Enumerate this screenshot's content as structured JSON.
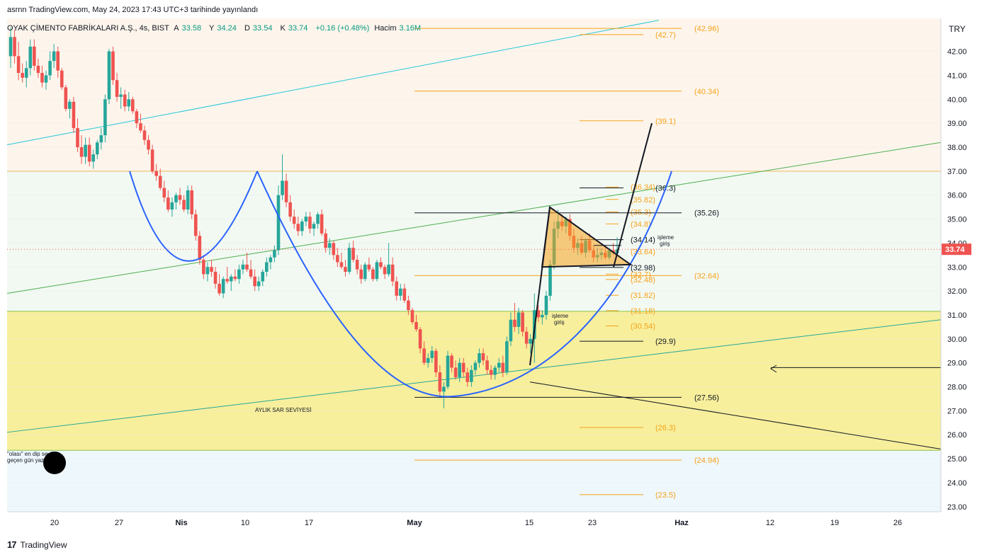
{
  "header": {
    "publish_line": "asrnn TradingView.com, May 24, 2023 17:43 UTC+3 tarihinde yayınlandı"
  },
  "legend": {
    "symbol": "OYAK ÇİMENTO FABRİKALARI A.Ş., 4s, BIST",
    "open_label": "A",
    "open": "33.58",
    "high_label": "Y",
    "high": "34.24",
    "low_label": "D",
    "low": "33.54",
    "close_label": "K",
    "close": "33.74",
    "change": "+0.16 (+0.48%)",
    "volume_label": "Hacim",
    "volume": "3.16M"
  },
  "footer": {
    "brand": "TradingView"
  },
  "colors": {
    "up": "#26a69a",
    "down": "#ef5350",
    "fib": "#f7a21b",
    "cup": "#2962ff",
    "zone_top": "#fdf5ec",
    "zone_mid": "#f2f9f2",
    "zone_yellow": "#f7ef9c",
    "zone_blue": "#eef7fb"
  },
  "chart_data": {
    "type": "candlestick",
    "currency": "TRY",
    "y_ticks": [
      "42.00",
      "41.00",
      "40.00",
      "39.00",
      "38.00",
      "37.00",
      "36.00",
      "35.00",
      "34.00",
      "33.00",
      "32.00",
      "31.00",
      "30.00",
      "29.00",
      "28.00",
      "27.00",
      "26.00",
      "25.00",
      "24.00",
      "23.00"
    ],
    "x_ticks": [
      "20",
      "27",
      "Nis",
      "10",
      "17",
      "May",
      "15",
      "23",
      "Haz",
      "12",
      "19",
      "26"
    ],
    "ylim": [
      22.7,
      43.3
    ],
    "last_price": "33.74",
    "ohlc": [
      [
        41.8,
        43.0,
        41.3,
        42.6
      ],
      [
        42.6,
        42.9,
        41.5,
        41.8
      ],
      [
        41.8,
        42.4,
        40.8,
        41.1
      ],
      [
        41.1,
        41.5,
        40.7,
        40.9
      ],
      [
        40.9,
        41.6,
        40.5,
        41.3
      ],
      [
        41.3,
        42.5,
        41.0,
        42.2
      ],
      [
        42.2,
        42.5,
        41.2,
        41.4
      ],
      [
        41.4,
        41.7,
        40.9,
        41.1
      ],
      [
        41.1,
        41.4,
        40.5,
        40.7
      ],
      [
        40.7,
        41.2,
        40.4,
        41.0
      ],
      [
        41.0,
        42.0,
        40.8,
        41.6
      ],
      [
        41.6,
        42.3,
        41.3,
        42.0
      ],
      [
        42.0,
        42.2,
        40.9,
        41.2
      ],
      [
        41.2,
        41.3,
        40.4,
        40.5
      ],
      [
        40.5,
        40.6,
        39.5,
        39.6
      ],
      [
        39.6,
        40.0,
        39.2,
        39.9
      ],
      [
        39.9,
        40.1,
        38.6,
        38.8
      ],
      [
        38.8,
        39.2,
        37.8,
        38.0
      ],
      [
        38.0,
        38.5,
        37.3,
        37.6
      ],
      [
        37.6,
        38.4,
        37.3,
        38.1
      ],
      [
        38.1,
        38.4,
        37.2,
        37.4
      ],
      [
        37.4,
        37.9,
        37.1,
        37.7
      ],
      [
        37.7,
        38.3,
        37.5,
        38.2
      ],
      [
        38.2,
        38.8,
        37.9,
        38.5
      ],
      [
        38.5,
        40.2,
        38.2,
        40.0
      ],
      [
        40.0,
        42.1,
        39.8,
        42.0
      ],
      [
        42.0,
        42.2,
        40.6,
        40.8
      ],
      [
        40.8,
        41.1,
        39.9,
        40.1
      ],
      [
        40.1,
        40.5,
        39.6,
        40.2
      ],
      [
        40.2,
        40.4,
        39.5,
        39.7
      ],
      [
        39.7,
        40.3,
        39.5,
        40.0
      ],
      [
        40.0,
        40.1,
        39.4,
        39.5
      ],
      [
        39.5,
        39.6,
        38.8,
        39.0
      ],
      [
        39.0,
        39.4,
        38.6,
        38.7
      ],
      [
        38.7,
        38.9,
        38.1,
        38.3
      ],
      [
        38.3,
        38.5,
        37.7,
        37.9
      ],
      [
        37.9,
        38.1,
        36.9,
        37.0
      ],
      [
        37.0,
        37.3,
        36.6,
        36.8
      ],
      [
        36.8,
        37.1,
        36.2,
        36.3
      ],
      [
        36.3,
        36.6,
        35.7,
        35.9
      ],
      [
        35.9,
        36.2,
        35.3,
        35.4
      ],
      [
        35.4,
        35.9,
        35.1,
        35.7
      ],
      [
        35.7,
        36.1,
        35.4,
        36.0
      ],
      [
        36.0,
        36.3,
        35.6,
        35.8
      ],
      [
        35.8,
        36.0,
        35.3,
        35.4
      ],
      [
        35.4,
        36.4,
        35.2,
        36.2
      ],
      [
        36.2,
        36.4,
        35.0,
        35.2
      ],
      [
        35.2,
        35.4,
        34.1,
        34.3
      ],
      [
        34.3,
        34.5,
        33.1,
        33.3
      ],
      [
        33.3,
        33.5,
        32.5,
        32.7
      ],
      [
        32.7,
        33.2,
        32.4,
        33.0
      ],
      [
        33.0,
        33.3,
        32.6,
        32.8
      ],
      [
        32.8,
        33.0,
        32.1,
        32.3
      ],
      [
        32.3,
        32.7,
        31.8,
        31.9
      ],
      [
        31.9,
        32.6,
        31.7,
        32.5
      ],
      [
        32.5,
        33.0,
        32.3,
        32.4
      ],
      [
        32.4,
        32.7,
        32.0,
        32.6
      ],
      [
        32.6,
        32.9,
        32.4,
        32.5
      ],
      [
        32.5,
        33.1,
        32.3,
        32.9
      ],
      [
        32.9,
        33.3,
        32.7,
        33.1
      ],
      [
        33.1,
        33.6,
        32.8,
        32.9
      ],
      [
        32.9,
        33.3,
        32.5,
        32.6
      ],
      [
        32.6,
        32.9,
        32.0,
        32.2
      ],
      [
        32.2,
        32.6,
        32.0,
        32.4
      ],
      [
        32.4,
        32.9,
        32.2,
        32.8
      ],
      [
        32.8,
        33.4,
        32.6,
        33.2
      ],
      [
        33.2,
        33.5,
        32.9,
        33.4
      ],
      [
        33.4,
        33.9,
        33.2,
        33.7
      ],
      [
        33.7,
        36.4,
        33.5,
        36.0
      ],
      [
        36.0,
        37.7,
        35.8,
        36.6
      ],
      [
        36.6,
        36.9,
        35.5,
        35.7
      ],
      [
        35.7,
        36.0,
        34.9,
        35.1
      ],
      [
        35.1,
        35.4,
        34.6,
        34.8
      ],
      [
        34.8,
        35.1,
        34.3,
        34.5
      ],
      [
        34.5,
        35.0,
        34.3,
        34.9
      ],
      [
        34.9,
        35.3,
        34.7,
        35.1
      ],
      [
        35.1,
        35.3,
        34.4,
        34.6
      ],
      [
        34.6,
        34.9,
        34.3,
        34.8
      ],
      [
        34.8,
        35.3,
        34.6,
        35.2
      ],
      [
        35.2,
        35.4,
        34.3,
        34.4
      ],
      [
        34.4,
        34.6,
        33.6,
        33.8
      ],
      [
        33.8,
        34.2,
        33.5,
        34.0
      ],
      [
        34.0,
        34.1,
        33.3,
        33.5
      ],
      [
        33.5,
        33.8,
        33.0,
        33.2
      ],
      [
        33.2,
        33.6,
        32.9,
        33.0
      ],
      [
        33.0,
        33.3,
        32.6,
        32.8
      ],
      [
        32.8,
        34.0,
        32.7,
        33.8
      ],
      [
        33.8,
        34.1,
        33.2,
        33.3
      ],
      [
        33.3,
        33.5,
        32.7,
        32.9
      ],
      [
        32.9,
        33.1,
        32.3,
        32.5
      ],
      [
        32.5,
        33.2,
        32.4,
        33.1
      ],
      [
        33.1,
        33.4,
        32.8,
        32.9
      ],
      [
        32.9,
        33.0,
        32.4,
        32.5
      ],
      [
        32.5,
        33.3,
        32.4,
        33.2
      ],
      [
        33.2,
        33.4,
        32.9,
        33.0
      ],
      [
        33.0,
        33.1,
        32.5,
        32.7
      ],
      [
        32.7,
        34.0,
        32.6,
        33.1
      ],
      [
        33.1,
        33.4,
        32.2,
        32.4
      ],
      [
        32.4,
        32.6,
        31.6,
        31.8
      ],
      [
        31.8,
        32.3,
        31.6,
        32.1
      ],
      [
        32.1,
        32.3,
        31.5,
        31.6
      ],
      [
        31.6,
        31.8,
        31.0,
        31.2
      ],
      [
        31.2,
        31.3,
        30.6,
        30.7
      ],
      [
        30.7,
        31.0,
        30.3,
        30.4
      ],
      [
        30.4,
        30.5,
        29.4,
        29.6
      ],
      [
        29.6,
        29.9,
        28.9,
        29.0
      ],
      [
        29.0,
        29.4,
        28.8,
        29.2
      ],
      [
        29.2,
        29.7,
        29.0,
        29.5
      ],
      [
        29.5,
        29.6,
        28.4,
        28.6
      ],
      [
        28.6,
        28.9,
        27.6,
        27.8
      ],
      [
        27.8,
        28.2,
        27.1,
        28.0
      ],
      [
        28.0,
        29.5,
        27.9,
        29.3
      ],
      [
        29.3,
        29.4,
        28.6,
        28.8
      ],
      [
        28.8,
        29.1,
        28.3,
        28.4
      ],
      [
        28.4,
        29.2,
        28.2,
        29.0
      ],
      [
        29.0,
        29.2,
        28.4,
        28.6
      ],
      [
        28.6,
        28.8,
        28.0,
        28.2
      ],
      [
        28.2,
        28.9,
        28.0,
        28.7
      ],
      [
        28.7,
        29.1,
        28.5,
        29.0
      ],
      [
        29.0,
        29.6,
        28.8,
        29.4
      ],
      [
        29.4,
        29.6,
        28.9,
        29.1
      ],
      [
        29.1,
        29.3,
        28.5,
        28.7
      ],
      [
        28.7,
        28.9,
        28.3,
        28.5
      ],
      [
        28.5,
        28.9,
        28.3,
        28.8
      ],
      [
        28.8,
        29.2,
        28.6,
        29.0
      ],
      [
        29.0,
        29.3,
        28.4,
        28.6
      ],
      [
        28.6,
        30.1,
        28.5,
        29.9
      ],
      [
        29.9,
        31.1,
        29.7,
        30.8
      ],
      [
        30.8,
        31.5,
        30.3,
        30.5
      ],
      [
        30.5,
        31.3,
        30.2,
        31.1
      ],
      [
        31.1,
        31.2,
        30.1,
        30.3
      ],
      [
        30.3,
        30.5,
        29.6,
        29.8
      ],
      [
        29.8,
        30.2,
        29.4,
        30.0
      ],
      [
        30.0,
        31.9,
        29.0,
        31.2
      ],
      [
        31.2,
        31.4,
        30.7,
        30.9
      ],
      [
        30.9,
        31.2,
        30.6,
        31.0
      ],
      [
        31.0,
        32.0,
        30.8,
        31.8
      ],
      [
        31.8,
        33.3,
        31.6,
        33.1
      ],
      [
        33.1,
        34.9,
        32.9,
        34.6
      ],
      [
        34.6,
        35.4,
        34.2,
        34.9
      ],
      [
        34.9,
        35.2,
        34.5,
        34.7
      ],
      [
        34.7,
        35.1,
        34.4,
        35.0
      ],
      [
        35.0,
        35.2,
        34.1,
        34.3
      ],
      [
        34.3,
        34.6,
        33.6,
        33.8
      ],
      [
        33.8,
        34.2,
        33.5,
        34.0
      ],
      [
        34.0,
        34.3,
        33.5,
        33.6
      ],
      [
        33.6,
        34.2,
        33.4,
        34.1
      ],
      [
        34.1,
        34.4,
        33.6,
        33.7
      ],
      [
        33.7,
        33.9,
        33.2,
        33.4
      ],
      [
        33.4,
        33.8,
        33.2,
        33.5
      ],
      [
        33.5,
        33.8,
        33.3,
        33.6
      ],
      [
        33.6,
        33.9,
        33.3,
        33.4
      ],
      [
        33.4,
        33.8,
        33.3,
        33.7
      ],
      [
        33.7,
        34.0,
        33.5,
        33.6
      ],
      [
        33.58,
        34.24,
        33.54,
        33.74
      ]
    ],
    "fib_levels": [
      {
        "label": "(42.96)",
        "price": 42.96,
        "span": "long"
      },
      {
        "label": "(42.7)",
        "price": 42.7,
        "span": "short"
      },
      {
        "label": "(40.34)",
        "price": 40.34,
        "span": "long"
      },
      {
        "label": "(39.1)",
        "price": 39.1,
        "span": "mid"
      },
      {
        "label": "(32.64)",
        "price": 32.64,
        "span": "long"
      },
      {
        "label": "(27.56)",
        "price": 27.56,
        "span": "long_black"
      },
      {
        "label": "(26.3)",
        "price": 26.3,
        "span": "short"
      },
      {
        "label": "(24.94)",
        "price": 24.94,
        "span": "long"
      },
      {
        "label": "(23.5)",
        "price": 23.5,
        "span": "short"
      }
    ],
    "small_fib": [
      {
        "label": "(36.34)",
        "price": 36.34
      },
      {
        "label": "(35.82)",
        "price": 35.82
      },
      {
        "label": "(35.3)",
        "price": 35.3
      },
      {
        "label": "(34.8)",
        "price": 34.8
      },
      {
        "label": "(33.64)",
        "price": 33.64
      },
      {
        "label": "(32.7)",
        "price": 32.7
      },
      {
        "label": "(32.48)",
        "price": 32.48
      },
      {
        "label": "(31.82)",
        "price": 31.82
      },
      {
        "label": "(31.18)",
        "price": 31.18
      },
      {
        "label": "(30.54)",
        "price": 30.54
      }
    ],
    "black_levels": [
      {
        "label": "(36.3)",
        "price": 36.3
      },
      {
        "label": "(35.26)",
        "price": 35.26
      },
      {
        "label": "(34.14)",
        "price": 34.14
      },
      {
        "label": "(32.98)",
        "price": 32.98
      },
      {
        "label": "(29.9)",
        "price": 29.9
      }
    ],
    "annotations": {
      "sar": "AYLIK SAR SEVİYESİ",
      "entry1_a": "işleme",
      "entry1_b": "giriş",
      "entry2_a": "işleme",
      "entry2_b": "giriş",
      "bottom_a": "\"olası\" en dip seviye",
      "bottom_b": "geçen gün yazıldı"
    }
  }
}
